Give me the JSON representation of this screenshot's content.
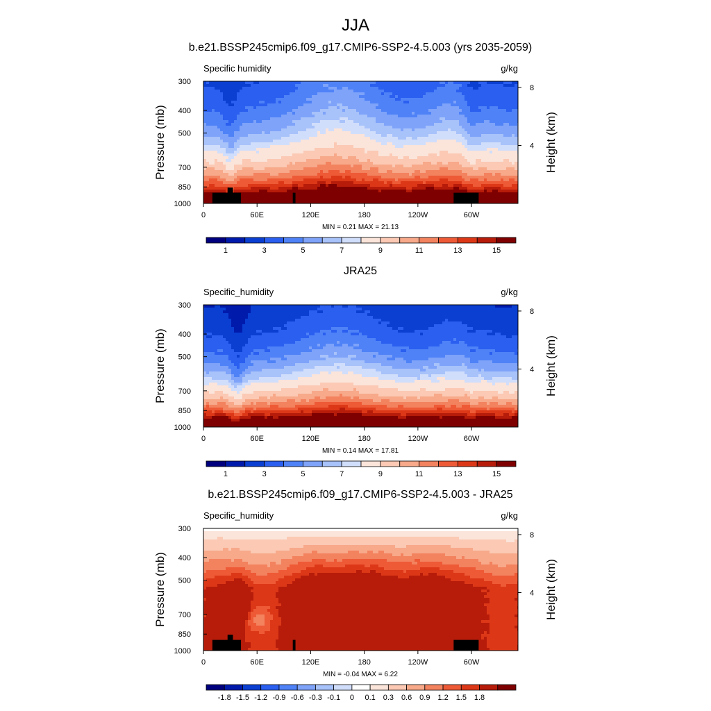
{
  "figure": {
    "title": "JJA"
  },
  "palettes": {
    "absolute": [
      "#00007f",
      "#001bac",
      "#0a3fd2",
      "#2a5ff0",
      "#4f82f7",
      "#7ea3f9",
      "#a8c2fa",
      "#d1defb",
      "#fbe4da",
      "#fbc9b4",
      "#f7a98a",
      "#f3825f",
      "#ee5a36",
      "#dc3818",
      "#b71c0a",
      "#7f0000"
    ],
    "difference": [
      "#00007f",
      "#001bac",
      "#0a3fd2",
      "#2a5ff0",
      "#4f82f7",
      "#7ea3f9",
      "#a8c2fa",
      "#d1defb",
      "#ffffff",
      "#fbe4da",
      "#fbc9b4",
      "#f7a98a",
      "#f3825f",
      "#ee5a36",
      "#dc3818",
      "#b71c0a",
      "#7f0000"
    ]
  },
  "chart_data": [
    {
      "type": "heatmap",
      "title": "b.e21.BSSP245cmip6.f09_g17.CMIP6-SSP2-4.5.003 (yrs 2035-2059)",
      "left_string": "Specific humidity",
      "right_string": "g/kg",
      "ylabel": "Pressure (mb)",
      "ylabel_right": "Height (km)",
      "x_ticks": [
        "0",
        "60E",
        "120E",
        "180",
        "120W",
        "60W"
      ],
      "x_tick_lon": [
        0,
        60,
        120,
        180,
        240,
        300
      ],
      "xlim": [
        0,
        352
      ],
      "y_ticks": [
        "300",
        "400",
        "500",
        "700",
        "850",
        "1000"
      ],
      "y_tick_p": [
        300,
        400,
        500,
        700,
        850,
        1000
      ],
      "ylim_mb": [
        1000,
        300
      ],
      "height_ticks": [
        "8",
        "4"
      ],
      "height_tick_km": [
        8,
        4
      ],
      "stats": "MIN =   0.21  MAX =  21.13",
      "min": 0.21,
      "max": 21.13,
      "colorbar_labels": [
        "1",
        "3",
        "5",
        "7",
        "9",
        "11",
        "13",
        "15"
      ],
      "colorbar_levels": [
        0.5,
        1,
        1.5,
        2,
        2.5,
        3,
        3.5,
        4,
        5,
        6,
        7,
        8,
        9,
        10,
        11,
        12,
        13,
        14,
        15,
        16
      ],
      "palette": "absolute",
      "field": "model"
    },
    {
      "type": "heatmap",
      "title": "JRA25",
      "left_string": "Specific_humidity",
      "right_string": "g/kg",
      "ylabel": "Pressure (mb)",
      "ylabel_right": "Height (km)",
      "x_ticks": [
        "0",
        "60E",
        "120E",
        "180",
        "120W",
        "60W"
      ],
      "x_tick_lon": [
        0,
        60,
        120,
        180,
        240,
        300
      ],
      "xlim": [
        0,
        352
      ],
      "y_ticks": [
        "300",
        "400",
        "500",
        "700",
        "850",
        "1000"
      ],
      "y_tick_p": [
        300,
        400,
        500,
        700,
        850,
        1000
      ],
      "ylim_mb": [
        1000,
        300
      ],
      "height_ticks": [
        "8",
        "4"
      ],
      "height_tick_km": [
        8,
        4
      ],
      "stats": "MIN =   0.14  MAX =  17.81",
      "min": 0.14,
      "max": 17.81,
      "colorbar_labels": [
        "1",
        "3",
        "5",
        "7",
        "9",
        "11",
        "13",
        "15"
      ],
      "colorbar_levels": [
        0.5,
        1,
        1.5,
        2,
        2.5,
        3,
        3.5,
        4,
        5,
        6,
        7,
        8,
        9,
        10,
        11,
        12,
        13,
        14,
        15,
        16
      ],
      "palette": "absolute",
      "field": "obs"
    },
    {
      "type": "heatmap",
      "title": "b.e21.BSSP245cmip6.f09_g17.CMIP6-SSP2-4.5.003 - JRA25",
      "left_string": "Specific_humidity",
      "right_string": "g/kg",
      "ylabel": "Pressure (mb)",
      "ylabel_right": "Height (km)",
      "x_ticks": [
        "0",
        "60E",
        "120E",
        "180",
        "120W",
        "60W"
      ],
      "x_tick_lon": [
        0,
        60,
        120,
        180,
        240,
        300
      ],
      "xlim": [
        0,
        352
      ],
      "y_ticks": [
        "300",
        "400",
        "500",
        "700",
        "850",
        "1000"
      ],
      "y_tick_p": [
        300,
        400,
        500,
        700,
        850,
        1000
      ],
      "ylim_mb": [
        1000,
        300
      ],
      "height_ticks": [
        "8",
        "4"
      ],
      "height_tick_km": [
        8,
        4
      ],
      "stats": "MIN =  -0.04  MAX =   6.22",
      "min": -0.04,
      "max": 6.22,
      "colorbar_labels": [
        "-1.8",
        "-1.5",
        "-1.2",
        "-0.9",
        "-0.6",
        "-0.3",
        "-0.1",
        "0",
        "0.1",
        "0.3",
        "0.6",
        "0.9",
        "1.2",
        "1.5",
        "1.8"
      ],
      "colorbar_levels": [
        -1.8,
        -1.5,
        -1.2,
        -0.9,
        -0.6,
        -0.3,
        -0.1,
        0,
        0.1,
        0.3,
        0.6,
        0.9,
        1.2,
        1.5,
        1.8
      ],
      "palette": "difference",
      "field": "diff"
    }
  ]
}
